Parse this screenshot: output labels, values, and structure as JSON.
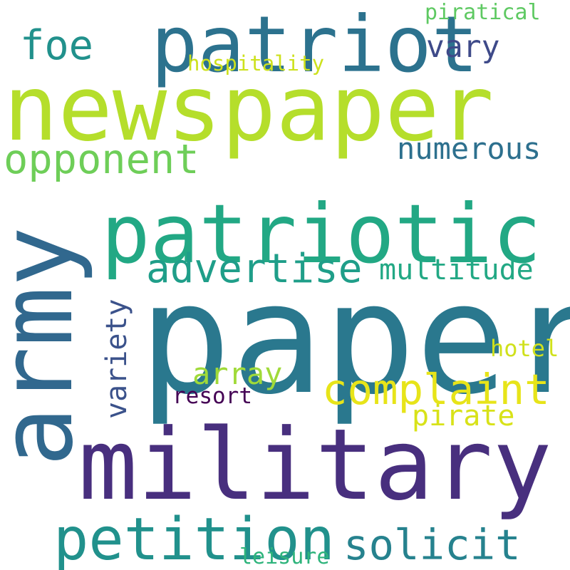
{
  "words": [
    {
      "text": "paper",
      "color": "#2a788e"
    },
    {
      "text": "military",
      "color": "#482f7e"
    },
    {
      "text": "newspaper",
      "color": "#b5de2b"
    },
    {
      "text": "army",
      "color": "#31688e"
    },
    {
      "text": "patriotic",
      "color": "#22a884"
    },
    {
      "text": "patriot",
      "color": "#2c728e"
    },
    {
      "text": "petition",
      "color": "#21918c"
    },
    {
      "text": "complaint",
      "color": "#e7e419"
    },
    {
      "text": "opponent",
      "color": "#6ece58"
    },
    {
      "text": "advertise",
      "color": "#1f9e89"
    },
    {
      "text": "solicit",
      "color": "#26828e"
    },
    {
      "text": "foe",
      "color": "#21918c"
    },
    {
      "text": "numerous",
      "color": "#2d708e"
    },
    {
      "text": "multitude",
      "color": "#22a884"
    },
    {
      "text": "variety",
      "color": "#3b528b"
    },
    {
      "text": "array",
      "color": "#a0da39"
    },
    {
      "text": "vary",
      "color": "#3e4a89"
    },
    {
      "text": "pirate",
      "color": "#d8e219"
    },
    {
      "text": "hotel",
      "color": "#d0e11c"
    },
    {
      "text": "resort",
      "color": "#440154"
    },
    {
      "text": "piratical",
      "color": "#5ec962"
    },
    {
      "text": "hospitality",
      "color": "#cde11d"
    },
    {
      "text": "leisure",
      "color": "#2fb47c"
    }
  ]
}
